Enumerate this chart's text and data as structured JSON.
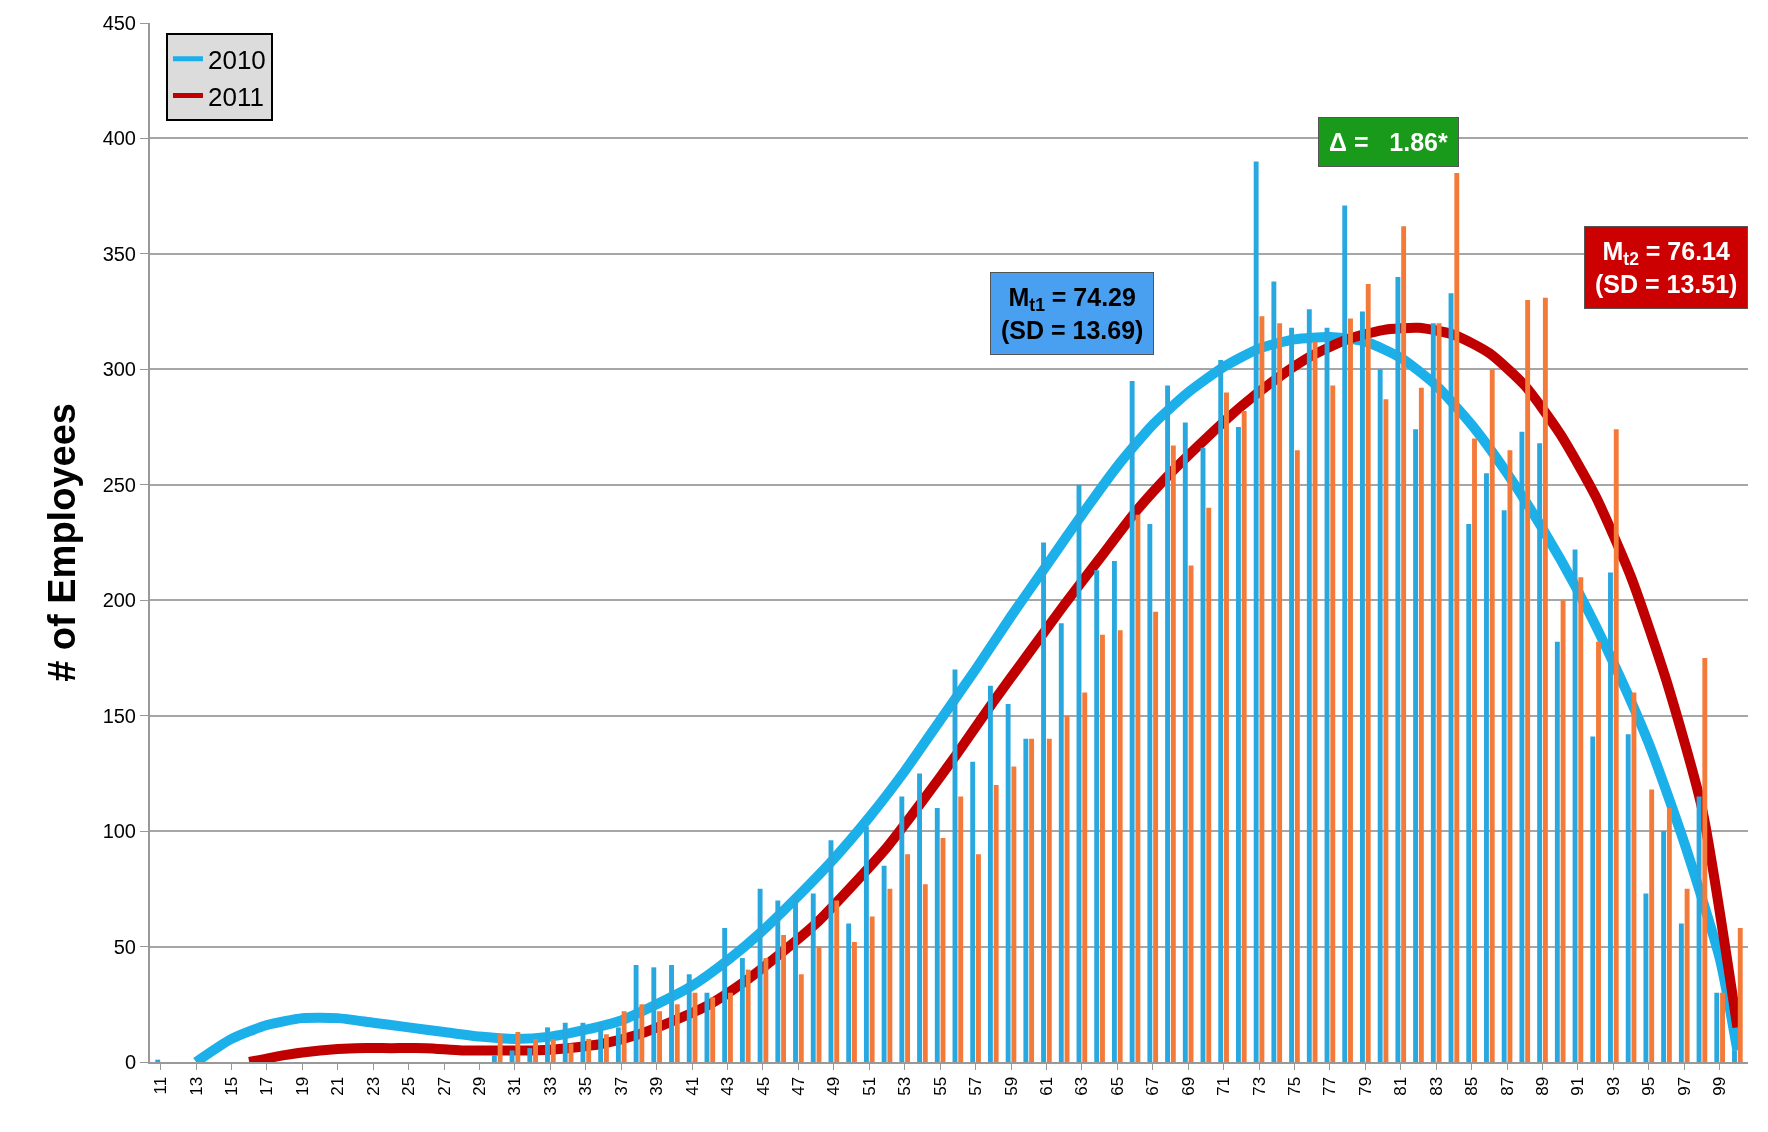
{
  "chart_data": {
    "type": "bar",
    "ylabel": "# of Employees",
    "x": [
      11,
      12,
      13,
      14,
      15,
      16,
      17,
      18,
      19,
      20,
      21,
      22,
      23,
      24,
      25,
      26,
      27,
      28,
      29,
      30,
      31,
      32,
      33,
      34,
      35,
      36,
      37,
      38,
      39,
      40,
      41,
      42,
      43,
      44,
      45,
      46,
      47,
      48,
      49,
      50,
      51,
      52,
      53,
      54,
      55,
      56,
      57,
      58,
      59,
      60,
      61,
      62,
      63,
      64,
      65,
      66,
      67,
      68,
      69,
      70,
      71,
      72,
      73,
      74,
      75,
      76,
      77,
      78,
      79,
      80,
      81,
      82,
      83,
      84,
      85,
      86,
      87,
      88,
      89,
      90,
      91,
      92,
      93,
      94,
      95,
      96,
      97,
      98,
      99,
      100
    ],
    "xlim": [
      10.4,
      100.6
    ],
    "xticks": [
      11,
      13,
      15,
      17,
      19,
      21,
      23,
      25,
      27,
      29,
      31,
      33,
      35,
      37,
      39,
      41,
      43,
      45,
      47,
      49,
      51,
      53,
      55,
      57,
      59,
      61,
      63,
      65,
      67,
      69,
      71,
      73,
      75,
      77,
      79,
      81,
      83,
      85,
      87,
      89,
      91,
      93,
      95,
      97,
      99
    ],
    "ylim": [
      0,
      450
    ],
    "yticks": [
      0,
      50,
      100,
      150,
      200,
      250,
      300,
      350,
      400,
      450
    ],
    "grid": "y",
    "legend": "top left",
    "series": [
      {
        "color": "#29a8df",
        "values": [
          1,
          0,
          0,
          0,
          0,
          0,
          0,
          0,
          0,
          0,
          0,
          0,
          0,
          0,
          0,
          0,
          0,
          0,
          0,
          3,
          5,
          6,
          15,
          17,
          17,
          17,
          15,
          42,
          41,
          42,
          38,
          30,
          58,
          45,
          75,
          70,
          72,
          73,
          96,
          60,
          102,
          85,
          115,
          125,
          110,
          170,
          130,
          163,
          155,
          140,
          225,
          190,
          250,
          213,
          217,
          295,
          233,
          293,
          277,
          266,
          304,
          275,
          390,
          338,
          318,
          326,
          318,
          371,
          325,
          300,
          340,
          274,
          320,
          333,
          233,
          255,
          239,
          273,
          268,
          182,
          222,
          141,
          212,
          142,
          73,
          100,
          60,
          115,
          30,
          5
        ]
      },
      {
        "color": "#f47a3a",
        "values": [
          0,
          0,
          0,
          0,
          0,
          0,
          0,
          0,
          0,
          0,
          0,
          0,
          0,
          0,
          0,
          0,
          0,
          0,
          0,
          12,
          13,
          10,
          10,
          8,
          10,
          12,
          22,
          25,
          22,
          25,
          30,
          28,
          30,
          40,
          45,
          55,
          38,
          50,
          70,
          52,
          63,
          75,
          90,
          77,
          97,
          115,
          90,
          120,
          128,
          140,
          140,
          150,
          160,
          185,
          187,
          237,
          195,
          267,
          215,
          240,
          290,
          282,
          323,
          320,
          265,
          312,
          293,
          322,
          337,
          287,
          362,
          292,
          320,
          385,
          270,
          300,
          265,
          330,
          331,
          200,
          210,
          182,
          274,
          160,
          118,
          110,
          75,
          175,
          30,
          58
        ]
      },
      {
        "type": "line",
        "name": "2010",
        "color": "#1bb0ea",
        "x": [
          13,
          15,
          17,
          19,
          21,
          23,
          25,
          27,
          29,
          31,
          33,
          35,
          37,
          39,
          41,
          43,
          45,
          47,
          49,
          51,
          53,
          55,
          57,
          59,
          61,
          63,
          65,
          67,
          69,
          71,
          73,
          75,
          77,
          79,
          81,
          83,
          85,
          87,
          89,
          91,
          93,
          95,
          97,
          99,
          100
        ],
        "values": [
          0,
          10,
          16,
          19,
          19,
          17,
          15,
          13,
          11,
          10,
          11,
          14,
          18,
          25,
          33,
          44,
          57,
          72,
          88,
          106,
          126,
          148,
          170,
          193,
          215,
          237,
          258,
          276,
          290,
          301,
          309,
          313,
          314,
          312,
          305,
          293,
          276,
          255,
          231,
          204,
          173,
          138,
          95,
          45,
          5
        ]
      },
      {
        "type": "line",
        "name": "2011",
        "color": "#c00000",
        "x": [
          16,
          18,
          20,
          22,
          24,
          26,
          28,
          30,
          32,
          34,
          36,
          38,
          40,
          42,
          44,
          46,
          48,
          50,
          52,
          54,
          56,
          58,
          60,
          62,
          64,
          66,
          68,
          70,
          72,
          74,
          76,
          78,
          80,
          82,
          84,
          86,
          88,
          90,
          92,
          94,
          96,
          98,
          100
        ],
        "values": [
          0,
          3,
          5,
          6,
          6,
          6,
          5,
          5,
          5,
          6,
          8,
          12,
          18,
          25,
          35,
          47,
          60,
          76,
          93,
          113,
          134,
          156,
          177,
          198,
          218,
          238,
          255,
          270,
          284,
          296,
          306,
          313,
          317,
          318,
          315,
          307,
          293,
          272,
          245,
          210,
          165,
          110,
          15
        ]
      }
    ],
    "annotations": [
      "Δ =   1.86*",
      "M$_{t1}$ = 74.29\n(SD = 13.69)",
      "M$_{t2}$ = 76.14\n(SD = 13.51)"
    ]
  }
}
